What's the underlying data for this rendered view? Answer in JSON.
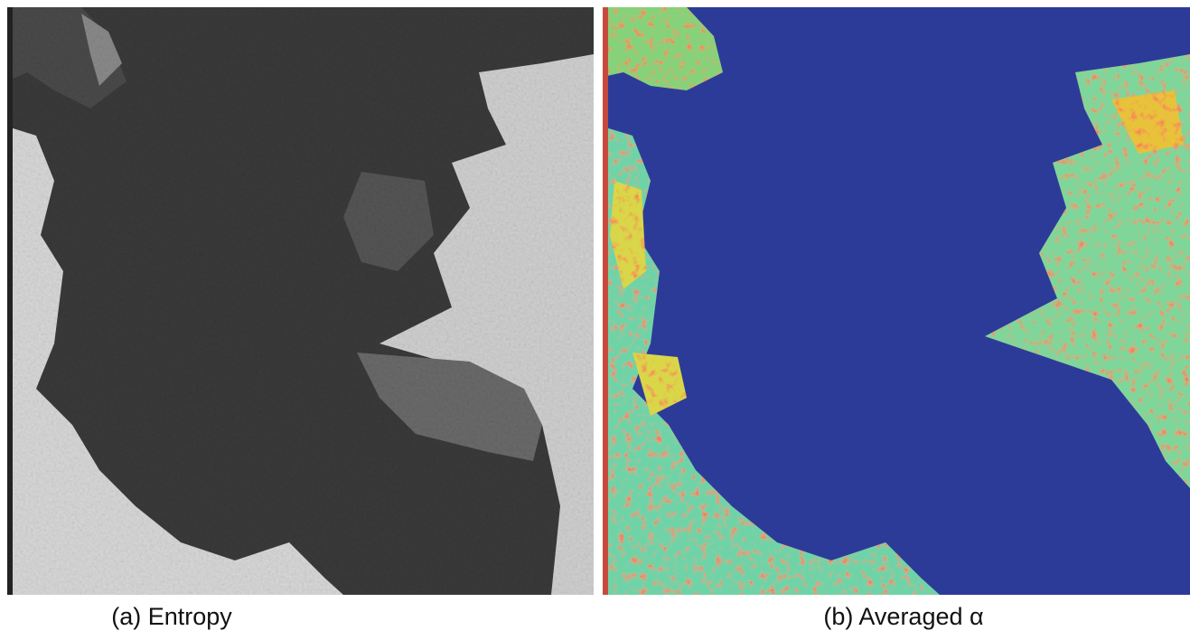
{
  "panels": [
    {
      "caption": "(a) Entropy"
    },
    {
      "caption": "(b) Averaged α"
    }
  ]
}
